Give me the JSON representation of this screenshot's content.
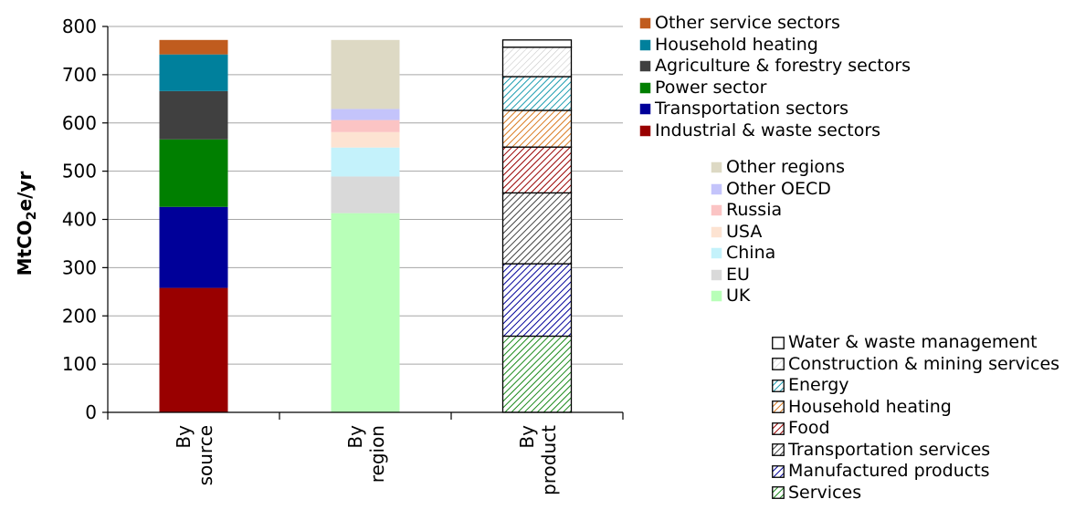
{
  "chart_data": {
    "type": "bar",
    "stacked": true,
    "ylabel_parts": [
      "MtCO",
      "2",
      "e/yr"
    ],
    "ylim": [
      0,
      800
    ],
    "yticks": [
      0,
      100,
      200,
      300,
      400,
      500,
      600,
      700,
      800
    ],
    "grid": true,
    "categories": [
      {
        "line1": "By",
        "line2": "source"
      },
      {
        "line1": "By",
        "line2": "region"
      },
      {
        "line1": "By",
        "line2": "product"
      }
    ],
    "stacks": [
      {
        "legend": "source",
        "segments": [
          {
            "name": "Industrial & waste sectors",
            "value": 258,
            "color": "#990000",
            "pattern": "solid"
          },
          {
            "name": "Transportation sectors",
            "value": 168,
            "color": "#000099",
            "pattern": "solid"
          },
          {
            "name": "Power sector",
            "value": 140,
            "color": "#007f00",
            "pattern": "solid"
          },
          {
            "name": "Agriculture & forestry sectors",
            "value": 100,
            "color": "#404040",
            "pattern": "solid"
          },
          {
            "name": "Household heating",
            "value": 76,
            "color": "#00809c",
            "pattern": "solid"
          },
          {
            "name": "Other service sectors",
            "value": 30,
            "color": "#c05c1e",
            "pattern": "solid"
          }
        ]
      },
      {
        "legend": "region",
        "segments": [
          {
            "name": "UK",
            "value": 413,
            "color": "#b8ffb8",
            "pattern": "solid"
          },
          {
            "name": "EU",
            "value": 76,
            "color": "#d9d9d9",
            "pattern": "solid"
          },
          {
            "name": "China",
            "value": 60,
            "color": "#c4f2fb",
            "pattern": "solid"
          },
          {
            "name": "USA",
            "value": 32,
            "color": "#fde3d2",
            "pattern": "solid"
          },
          {
            "name": "Russia",
            "value": 25,
            "color": "#fbc4c4",
            "pattern": "solid"
          },
          {
            "name": "Other OECD",
            "value": 23,
            "color": "#c4c4fb",
            "pattern": "solid"
          },
          {
            "name": "Other regions",
            "value": 143,
            "color": "#ddd9c4",
            "pattern": "solid"
          }
        ]
      },
      {
        "legend": "product",
        "segments": [
          {
            "name": "Services",
            "value": 158,
            "color": "#1a8a1a",
            "pattern": "hatch"
          },
          {
            "name": "Manufactured products",
            "value": 150,
            "color": "#000099",
            "pattern": "hatch"
          },
          {
            "name": "Transportation services",
            "value": 147,
            "color": "#404040",
            "pattern": "hatch"
          },
          {
            "name": "Food",
            "value": 95,
            "color": "#990000",
            "pattern": "hatch"
          },
          {
            "name": "Household heating",
            "value": 76,
            "color": "#d97a20",
            "pattern": "hatch"
          },
          {
            "name": "Energy",
            "value": 70,
            "color": "#1a9cb0",
            "pattern": "hatch"
          },
          {
            "name": "Construction & mining services",
            "value": 61,
            "color": "#c8c8c8",
            "pattern": "hatch-light"
          },
          {
            "name": "Water & waste management",
            "value": 15,
            "color": "#ffffff",
            "pattern": "outline"
          }
        ]
      }
    ]
  },
  "legends": {
    "source": [
      "Other service sectors",
      "Household heating",
      "Agriculture & forestry sectors",
      "Power sector",
      "Transportation sectors",
      "Industrial & waste sectors"
    ],
    "region": [
      "Other regions",
      "Other OECD",
      "Russia",
      "USA",
      "China",
      "EU",
      "UK"
    ],
    "product": [
      "Water & waste management",
      "Construction & mining services",
      "Energy",
      "Household heating",
      "Food",
      "Transportation services",
      "Manufactured products",
      "Services"
    ]
  }
}
